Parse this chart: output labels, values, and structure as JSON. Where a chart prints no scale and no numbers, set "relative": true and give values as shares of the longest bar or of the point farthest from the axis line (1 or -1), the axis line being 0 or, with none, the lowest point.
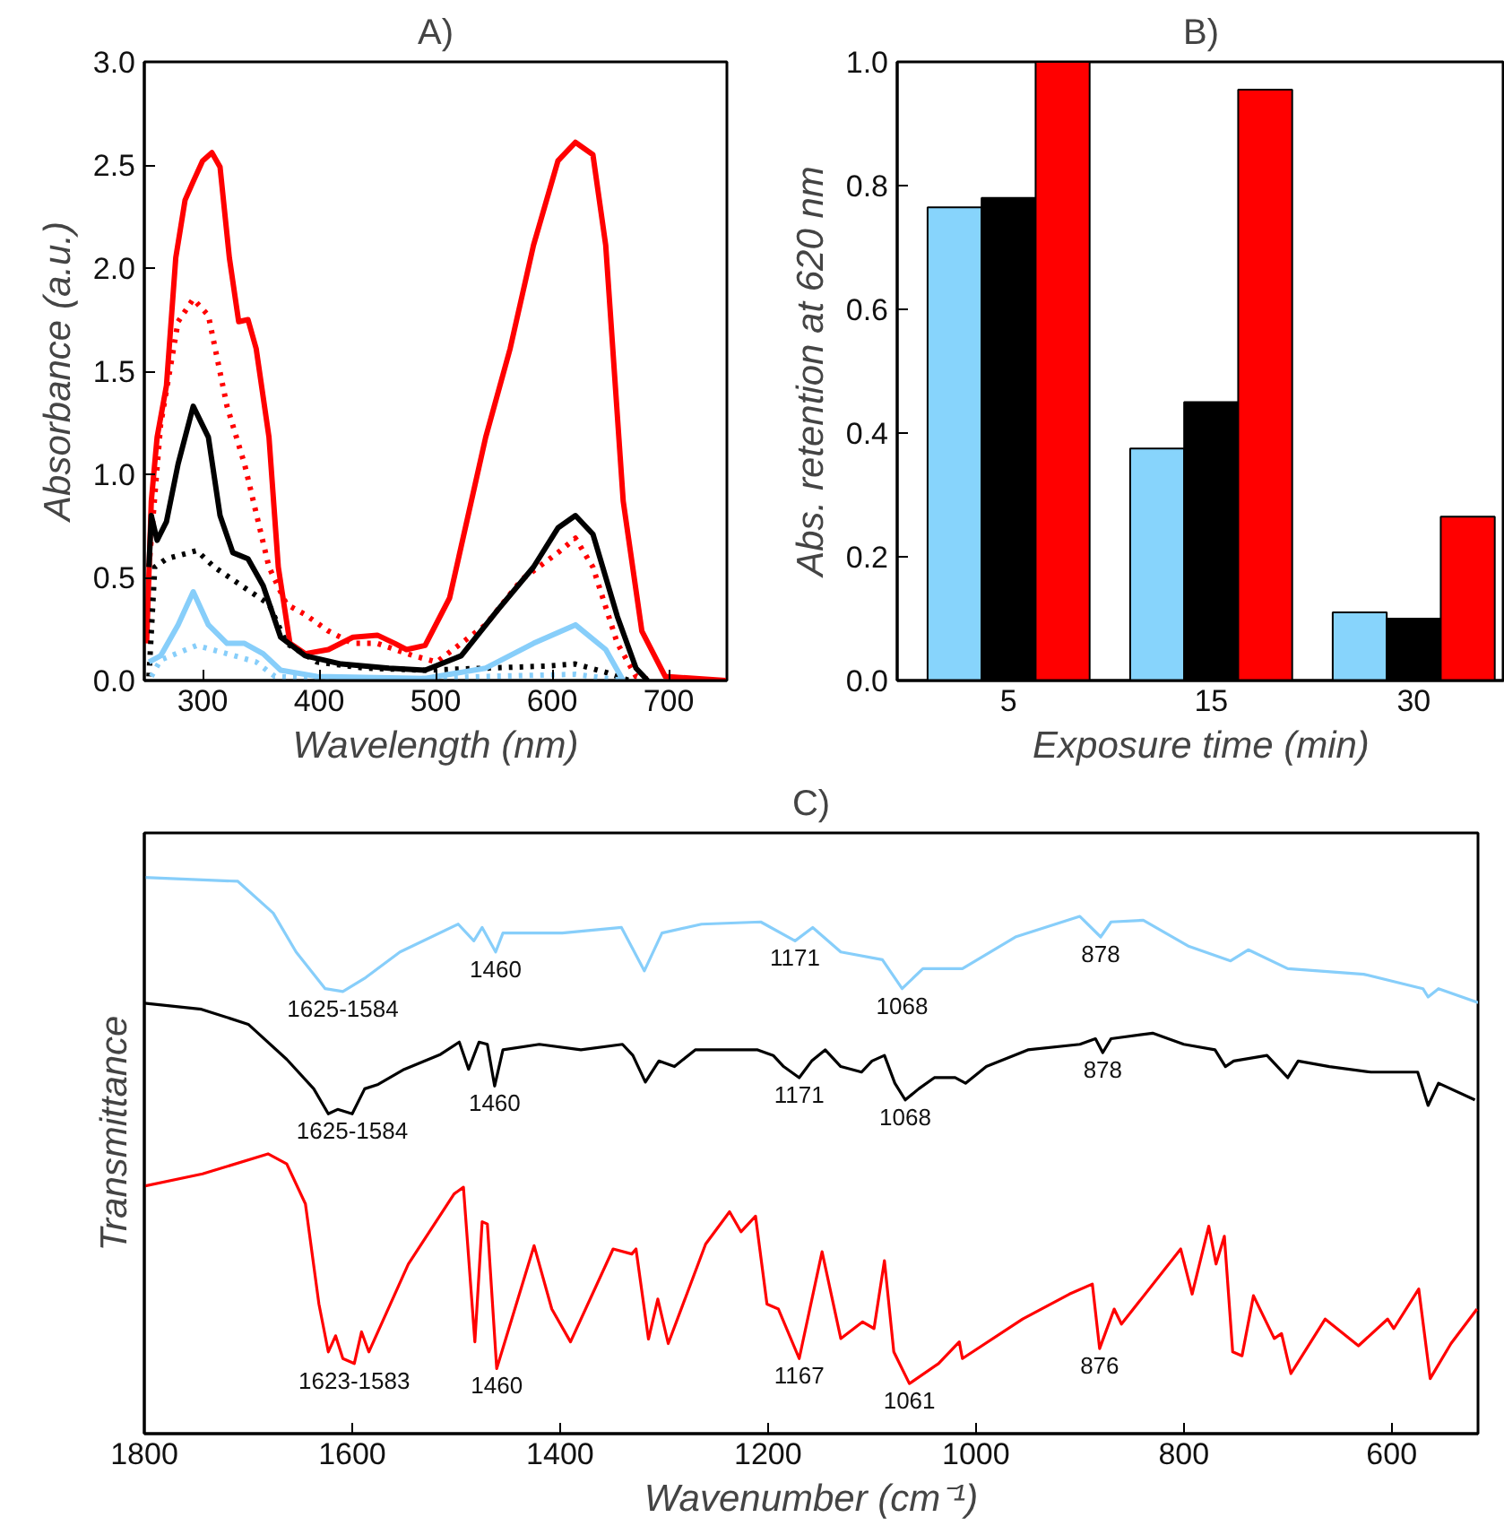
{
  "chart_data": [
    {
      "type": "line",
      "title": "A)",
      "xlabel": "Wavelength (nm)",
      "ylabel": "Absorbance (a.u.)",
      "xlim": [
        250,
        750
      ],
      "xticks": [
        300,
        400,
        500,
        600,
        700
      ],
      "ylim": [
        0,
        3
      ],
      "yticks": [
        {
          "value": 0,
          "label": "0.0"
        },
        0.5,
        {
          "value": 1,
          "label": "1.0"
        },
        1.5,
        {
          "value": 2,
          "label": "2.0"
        },
        2.5,
        {
          "value": 3,
          "label": "3.0"
        }
      ],
      "grid": false,
      "series": [
        {
          "color": "#ff0000",
          "line_style": "solid",
          "x": [
            252,
            256,
            261,
            269,
            277,
            285,
            292,
            300,
            308,
            315,
            323,
            331,
            339,
            346,
            357,
            365,
            375,
            388,
            408,
            429,
            450,
            465,
            475,
            491,
            512,
            543,
            564,
            584,
            605,
            620,
            635,
            646,
            661,
            677,
            697,
            749
          ],
          "values": [
            0.18,
            0.87,
            1.18,
            1.43,
            2.05,
            2.33,
            2.42,
            2.52,
            2.56,
            2.49,
            2.05,
            1.74,
            1.75,
            1.61,
            1.18,
            0.55,
            0.18,
            0.13,
            0.15,
            0.21,
            0.22,
            0.18,
            0.15,
            0.17,
            0.4,
            1.18,
            1.61,
            2.11,
            2.52,
            2.61,
            2.55,
            2.11,
            0.87,
            0.24,
            0.02,
            0
          ]
        },
        {
          "color": "#ff0000",
          "line_style": "dotted",
          "x": [
            254,
            264,
            279,
            292,
            305,
            321,
            336,
            357,
            372,
            388,
            408,
            429,
            450,
            481,
            501,
            543,
            574,
            605,
            620,
            635,
            656,
            672,
            687
          ],
          "values": [
            0.55,
            1.24,
            1.74,
            1.85,
            1.77,
            1.33,
            1.05,
            0.55,
            0.37,
            0.32,
            0.24,
            0.18,
            0.18,
            0.12,
            0.09,
            0.27,
            0.49,
            0.62,
            0.69,
            0.55,
            0.18,
            0.02,
            0
          ]
        },
        {
          "color": "#000000",
          "line_style": "solid",
          "x": [
            254,
            256,
            261,
            269,
            279,
            292,
            305,
            315,
            326,
            339,
            352,
            367,
            388,
            419,
            460,
            491,
            522,
            553,
            584,
            605,
            620,
            635,
            656,
            672,
            682
          ],
          "values": [
            0.55,
            0.8,
            0.68,
            0.77,
            1.05,
            1.33,
            1.18,
            0.8,
            0.62,
            0.59,
            0.46,
            0.21,
            0.12,
            0.08,
            0.06,
            0.05,
            0.12,
            0.34,
            0.55,
            0.74,
            0.8,
            0.71,
            0.31,
            0.06,
            0
          ]
        },
        {
          "color": "#000000",
          "line_style": "dotted",
          "x": [
            254,
            259,
            269,
            295,
            310,
            336,
            357,
            372,
            398,
            439,
            491,
            543,
            594,
            620,
            646,
            666
          ],
          "values": [
            0.02,
            0.55,
            0.59,
            0.63,
            0.55,
            0.45,
            0.37,
            0.18,
            0.09,
            0.06,
            0.05,
            0.06,
            0.07,
            0.08,
            0.04,
            0
          ]
        },
        {
          "color": "#87cefa",
          "line_style": "solid",
          "x": [
            254,
            264,
            279,
            292,
            305,
            321,
            336,
            352,
            367,
            398,
            491,
            543,
            584,
            620,
            646,
            661
          ],
          "values": [
            0.09,
            0.12,
            0.27,
            0.43,
            0.27,
            0.18,
            0.18,
            0.13,
            0.05,
            0.02,
            0.01,
            0.06,
            0.18,
            0.27,
            0.15,
            0
          ]
        },
        {
          "color": "#87cefa",
          "line_style": "dotted",
          "x": [
            256,
            264,
            295,
            321,
            346,
            362,
            439,
            543,
            620,
            661
          ],
          "values": [
            0.02,
            0.1,
            0.17,
            0.13,
            0.09,
            0.02,
            0,
            0.02,
            0.03,
            0
          ]
        }
      ]
    },
    {
      "type": "bar",
      "title": "B)",
      "xlabel": "Exposure time (min)",
      "ylabel": "Abs. retention at 620 nm",
      "categories": [
        "5",
        "15",
        "30"
      ],
      "ylim": [
        0,
        1
      ],
      "yticks": [
        {
          "value": 0,
          "label": "0.0"
        },
        0.2,
        0.4,
        0.6,
        0.8,
        {
          "value": 1,
          "label": "1.0"
        }
      ],
      "grid": false,
      "series": [
        {
          "color": "#87d4fc",
          "values": [
            0.765,
            0.375,
            0.11
          ]
        },
        {
          "color": "#000000",
          "values": [
            0.78,
            0.45,
            0.1
          ]
        },
        {
          "color": "#ff0000",
          "values": [
            1.0,
            0.955,
            0.265
          ]
        }
      ]
    },
    {
      "type": "line",
      "title": "C)",
      "xlabel": "Wavenumber (cm⁻¹)",
      "ylabel": "Transmittance",
      "relative": true,
      "xlim": [
        1800,
        517
      ],
      "xticks": [
        1800,
        1600,
        1400,
        1200,
        1000,
        800,
        600
      ],
      "grid": false,
      "series": [
        {
          "color": "#87cefa",
          "line_style": "solid",
          "x": [
            1800,
            1710,
            1676,
            1654,
            1626,
            1609,
            1587,
            1554,
            1498,
            1483,
            1475,
            1462,
            1455,
            1398,
            1341,
            1319,
            1302,
            1264,
            1207,
            1174,
            1157,
            1130,
            1090,
            1071,
            1051,
            1013,
            962,
            900,
            880,
            870,
            839,
            795,
            755,
            738,
            700,
            627,
            570,
            565,
            555,
            517
          ],
          "values": [
            1.0,
            0.993,
            0.936,
            0.866,
            0.8,
            0.795,
            0.82,
            0.866,
            0.916,
            0.886,
            0.91,
            0.866,
            0.9,
            0.9,
            0.91,
            0.832,
            0.9,
            0.916,
            0.92,
            0.886,
            0.91,
            0.866,
            0.852,
            0.8,
            0.836,
            0.836,
            0.893,
            0.93,
            0.893,
            0.92,
            0.923,
            0.876,
            0.85,
            0.87,
            0.836,
            0.826,
            0.8,
            0.785,
            0.8,
            0.775
          ]
        },
        {
          "color": "#000000",
          "line_style": "solid",
          "x": [
            1800,
            1745,
            1700,
            1663,
            1637,
            1623,
            1614,
            1600,
            1588,
            1575,
            1550,
            1515,
            1497,
            1488,
            1478,
            1470,
            1463,
            1455,
            1420,
            1380,
            1340,
            1330,
            1318,
            1305,
            1290,
            1270,
            1230,
            1210,
            1195,
            1185,
            1170,
            1158,
            1145,
            1130,
            1110,
            1100,
            1088,
            1078,
            1068,
            1055,
            1040,
            1020,
            1010,
            990,
            950,
            900,
            885,
            878,
            870,
            830,
            800,
            770,
            760,
            752,
            720,
            700,
            690,
            660,
            620,
            575,
            565,
            555,
            520
          ],
          "values": [
            0.774,
            0.763,
            0.736,
            0.673,
            0.62,
            0.575,
            0.583,
            0.575,
            0.62,
            0.628,
            0.655,
            0.682,
            0.704,
            0.655,
            0.704,
            0.7,
            0.625,
            0.69,
            0.7,
            0.69,
            0.7,
            0.68,
            0.632,
            0.67,
            0.66,
            0.69,
            0.69,
            0.69,
            0.68,
            0.66,
            0.64,
            0.67,
            0.69,
            0.66,
            0.65,
            0.67,
            0.68,
            0.63,
            0.6,
            0.62,
            0.64,
            0.64,
            0.63,
            0.66,
            0.69,
            0.7,
            0.71,
            0.685,
            0.71,
            0.72,
            0.7,
            0.69,
            0.66,
            0.67,
            0.68,
            0.64,
            0.67,
            0.66,
            0.65,
            0.65,
            0.59,
            0.63,
            0.6
          ]
        },
        {
          "color": "#ff0000",
          "line_style": "solid",
          "x": [
            1800,
            1744,
            1681,
            1663,
            1645,
            1632,
            1623,
            1616,
            1609,
            1598,
            1591,
            1584,
            1546,
            1502,
            1493,
            1482,
            1475,
            1470,
            1461,
            1425,
            1408,
            1390,
            1349,
            1331,
            1327,
            1315,
            1306,
            1296,
            1260,
            1237,
            1226,
            1212,
            1201,
            1190,
            1170,
            1148,
            1130,
            1109,
            1098,
            1088,
            1079,
            1064,
            1036,
            1016,
            1013,
            955,
            910,
            888,
            881,
            867,
            860,
            803,
            792,
            776,
            769,
            761,
            753,
            744,
            733,
            713,
            706,
            697,
            664,
            632,
            604,
            598,
            574,
            563,
            543,
            518
          ],
          "values": [
            0.445,
            0.467,
            0.503,
            0.485,
            0.413,
            0.233,
            0.147,
            0.176,
            0.135,
            0.126,
            0.183,
            0.147,
            0.305,
            0.431,
            0.443,
            0.165,
            0.381,
            0.377,
            0.117,
            0.338,
            0.224,
            0.165,
            0.332,
            0.323,
            0.332,
            0.17,
            0.242,
            0.162,
            0.341,
            0.399,
            0.363,
            0.391,
            0.233,
            0.224,
            0.135,
            0.327,
            0.171,
            0.201,
            0.189,
            0.311,
            0.147,
            0.09,
            0.126,
            0.165,
            0.135,
            0.206,
            0.251,
            0.269,
            0.153,
            0.224,
            0.197,
            0.332,
            0.251,
            0.373,
            0.305,
            0.355,
            0.147,
            0.14,
            0.248,
            0.171,
            0.18,
            0.108,
            0.206,
            0.158,
            0.206,
            0.189,
            0.26,
            0.099,
            0.162,
            0.224
          ]
        }
      ],
      "annotations": [
        {
          "text": "1625-1584",
          "x": 1609,
          "y": 0.795
        },
        {
          "text": "1460",
          "x": 1462,
          "y": 0.866
        },
        {
          "text": "1171",
          "x": 1174,
          "y": 0.886
        },
        {
          "text": "1068",
          "x": 1071,
          "y": 0.8
        },
        {
          "text": "878",
          "x": 880,
          "y": 0.893
        },
        {
          "text": "1625-1584",
          "x": 1600,
          "y": 0.575
        },
        {
          "text": "1460",
          "x": 1463,
          "y": 0.625
        },
        {
          "text": "1171",
          "x": 1170,
          "y": 0.64
        },
        {
          "text": "1068",
          "x": 1068,
          "y": 0.6
        },
        {
          "text": "878",
          "x": 878,
          "y": 0.685
        },
        {
          "text": "1623-1583",
          "x": 1598,
          "y": 0.126
        },
        {
          "text": "1460",
          "x": 1461,
          "y": 0.117
        },
        {
          "text": "1167",
          "x": 1170,
          "y": 0.135
        },
        {
          "text": "1061",
          "x": 1064,
          "y": 0.09
        },
        {
          "text": "876",
          "x": 881,
          "y": 0.153
        }
      ]
    }
  ]
}
